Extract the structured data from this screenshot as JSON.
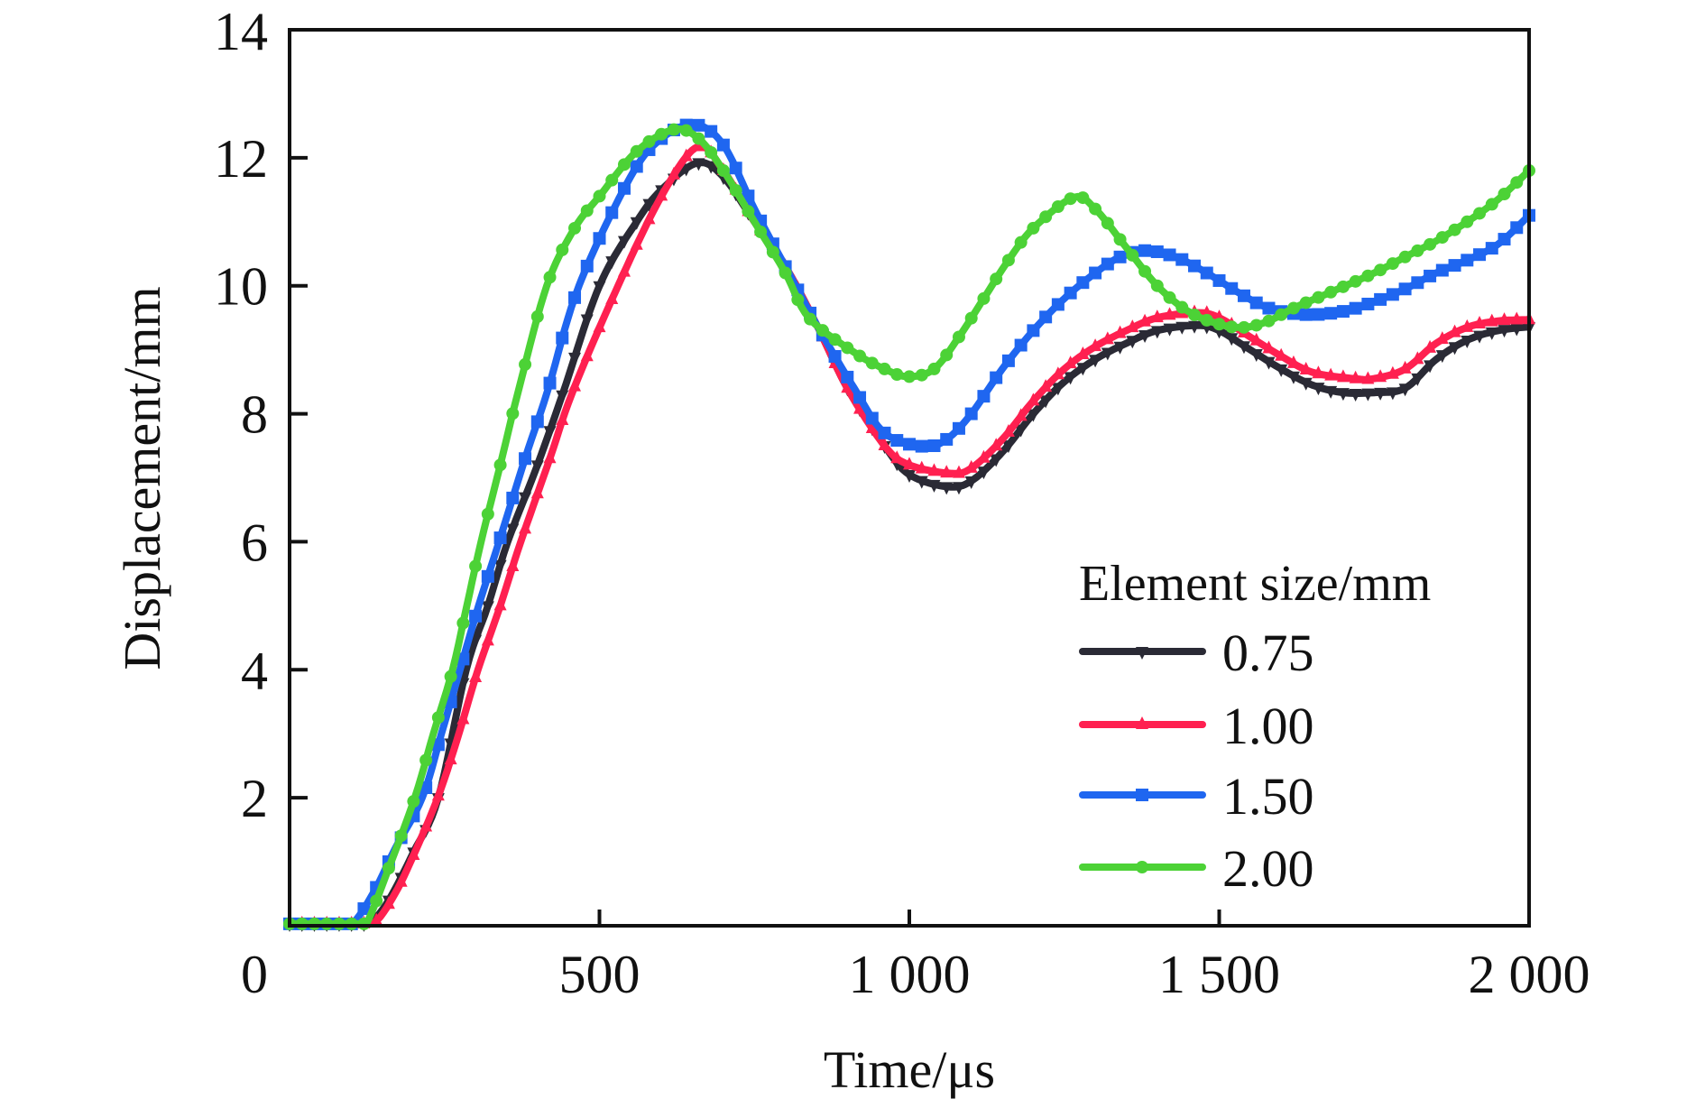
{
  "chart_data": {
    "type": "line",
    "title": "",
    "xlabel": "Time/μs",
    "ylabel": "Displacement/mm",
    "xlim": [
      0,
      2000
    ],
    "ylim": [
      0,
      14
    ],
    "xticks": [
      0,
      500,
      1000,
      1500,
      2000
    ],
    "xtick_labels": [
      "0",
      "500",
      "1 000",
      "1 500",
      "2 000"
    ],
    "yticks": [
      2,
      4,
      6,
      8,
      10,
      12,
      14
    ],
    "ytick_labels": [
      "2",
      "4",
      "6",
      "8",
      "10",
      "12",
      "14"
    ],
    "grid": false,
    "legend": {
      "title": "Element size/mm",
      "placement": "bottom-right"
    },
    "series": [
      {
        "name": "0.75",
        "color": "#2a2a35",
        "marker": "triangle-down",
        "x": [
          0,
          100,
          130,
          160,
          200,
          240,
          285,
          320,
          352,
          400,
          442,
          500,
          560,
          600,
          658,
          700,
          750,
          800,
          850,
          900,
          960,
          1000,
          1061,
          1100,
          1150,
          1200,
          1250,
          1300,
          1350,
          1400,
          1464,
          1500,
          1550,
          1600,
          1650,
          1700,
          1750,
          1800,
          1850,
          1900,
          1950,
          2000
        ],
        "y": [
          0,
          0,
          0.05,
          0.4,
          1.15,
          2.0,
          4.0,
          5.0,
          6.0,
          7.2,
          8.35,
          10.0,
          11.0,
          11.5,
          11.92,
          11.7,
          11.0,
          10.3,
          9.4,
          8.4,
          7.5,
          7.05,
          6.86,
          6.95,
          7.4,
          8.0,
          8.5,
          8.85,
          9.1,
          9.3,
          9.38,
          9.3,
          9.0,
          8.7,
          8.45,
          8.33,
          8.33,
          8.4,
          8.85,
          9.15,
          9.3,
          9.36
        ]
      },
      {
        "name": "1.00",
        "color": "#ff2050",
        "marker": "triangle-up",
        "x": [
          0,
          100,
          137,
          170,
          200,
          239,
          270,
          304,
          340,
          373,
          420,
          457,
          530,
          600,
          658,
          700,
          750,
          800,
          850,
          900,
          960,
          1000,
          1066,
          1100,
          1150,
          1200,
          1250,
          1300,
          1350,
          1400,
          1464,
          1500,
          1550,
          1600,
          1650,
          1717,
          1750,
          1800,
          1850,
          1900,
          1950,
          2000
        ],
        "y": [
          0,
          0,
          0.05,
          0.5,
          1.1,
          2.0,
          2.9,
          4.0,
          5.0,
          6.0,
          7.3,
          8.35,
          10.0,
          11.4,
          12.17,
          11.8,
          11.0,
          10.3,
          9.4,
          8.4,
          7.5,
          7.2,
          7.07,
          7.15,
          7.6,
          8.2,
          8.7,
          9.05,
          9.3,
          9.5,
          9.58,
          9.5,
          9.2,
          8.9,
          8.65,
          8.55,
          8.55,
          8.7,
          9.1,
          9.35,
          9.45,
          9.47
        ]
      },
      {
        "name": "1.50",
        "color": "#1f66f0",
        "marker": "square",
        "x": [
          0,
          90,
          108,
          140,
          170,
          214,
          245,
          275,
          305,
          338,
          380,
          416,
          467,
          550,
          600,
          653,
          700,
          750,
          800,
          850,
          911,
          960,
          1022,
          1060,
          1100,
          1150,
          1200,
          1250,
          1300,
          1340,
          1381,
          1430,
          1480,
          1530,
          1580,
          1639,
          1700,
          1750,
          1800,
          1850,
          1900,
          1950,
          2000
        ],
        "y": [
          0,
          0.02,
          0.1,
          0.6,
          1.2,
          2.0,
          3.0,
          4.0,
          5.0,
          6.0,
          7.3,
          8.35,
          10.0,
          11.7,
          12.3,
          12.52,
          12.2,
          11.2,
          10.3,
          9.4,
          8.4,
          7.7,
          7.49,
          7.6,
          8.0,
          8.7,
          9.3,
          9.8,
          10.2,
          10.45,
          10.55,
          10.45,
          10.2,
          9.9,
          9.65,
          9.55,
          9.6,
          9.75,
          9.95,
          10.2,
          10.4,
          10.65,
          11.1
        ]
      },
      {
        "name": "2.00",
        "color": "#4cd236",
        "marker": "circle",
        "x": [
          0,
          110,
          125,
          160,
          202,
          232,
          263,
          286,
          309,
          340,
          369,
          415,
          460,
          500,
          560,
          620,
          660,
          700,
          750,
          800,
          838,
          911,
          960,
          998,
          1040,
          1080,
          1120,
          1160,
          1200,
          1265,
          1300,
          1350,
          1400,
          1450,
          1500,
          1541,
          1580,
          1620,
          1680,
          1750,
          1800,
          1850,
          1900,
          1950,
          2000
        ],
        "y": [
          0,
          0,
          0.05,
          0.9,
          2.0,
          3.0,
          4.0,
          5.0,
          6.0,
          7.2,
          8.35,
          10.0,
          10.9,
          11.4,
          12.1,
          12.44,
          12.3,
          11.8,
          11.0,
          10.2,
          9.5,
          8.96,
          8.7,
          8.58,
          8.7,
          9.2,
          9.8,
          10.4,
          10.9,
          11.38,
          11.2,
          10.6,
          10.0,
          9.6,
          9.4,
          9.35,
          9.45,
          9.65,
          9.9,
          10.2,
          10.45,
          10.7,
          11.0,
          11.35,
          11.8
        ]
      }
    ]
  }
}
